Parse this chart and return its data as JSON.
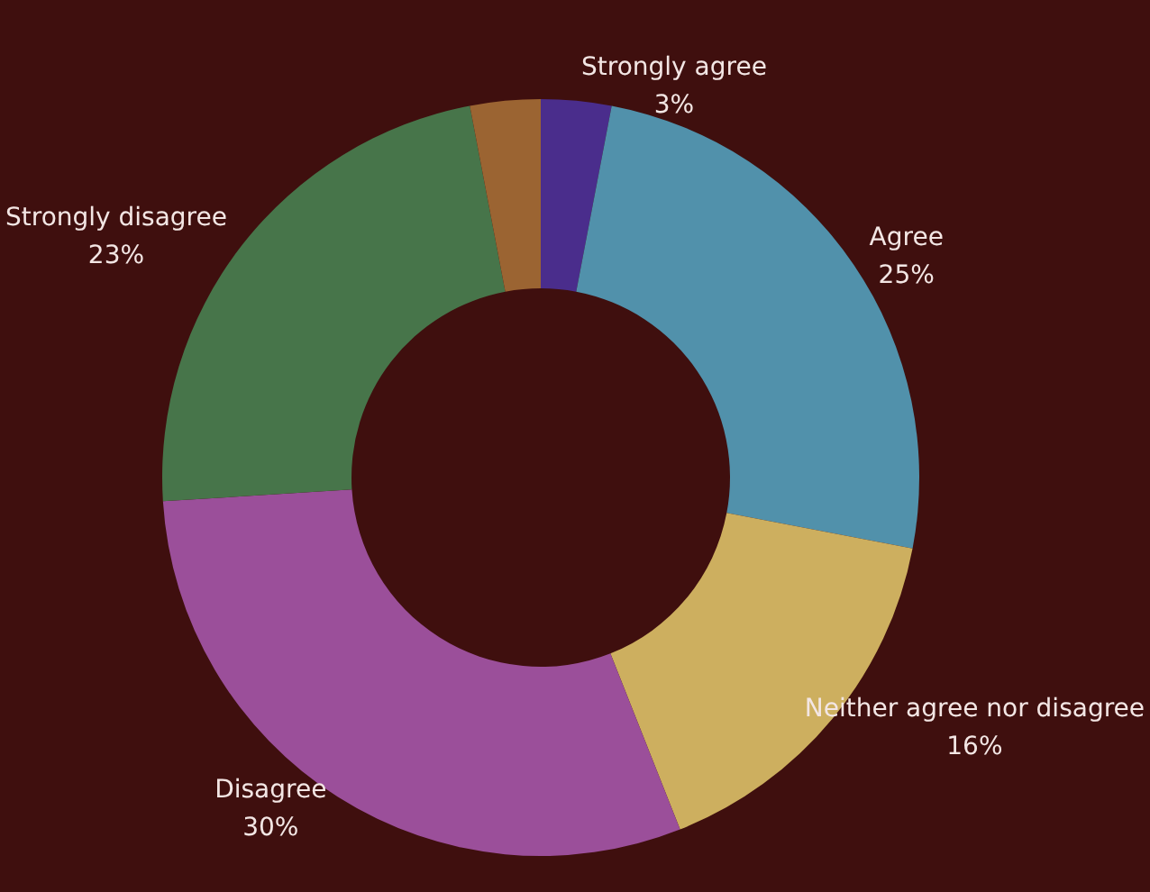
{
  "chart_data": {
    "type": "donut",
    "categories": [
      "Strongly agree",
      "Agree",
      "Neither agree nor disagree",
      "Disagree",
      "Strongly disagree",
      null
    ],
    "values": [
      3,
      25,
      16,
      30,
      23,
      3
    ],
    "value_labels": [
      "3%",
      "25%",
      "16%",
      "30%",
      "23%",
      null
    ],
    "colors": [
      "#4a2d8c",
      "#5191ab",
      "#cdaf5f",
      "#9b4f9a",
      "#47754a",
      "#9b6432"
    ],
    "legend": false
  }
}
